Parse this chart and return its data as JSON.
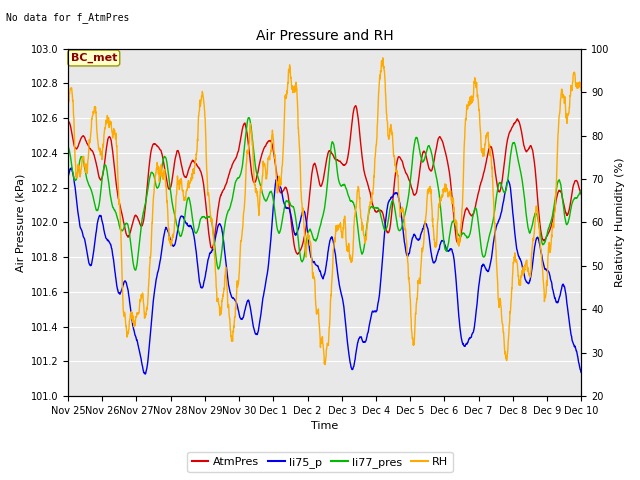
{
  "title": "Air Pressure and RH",
  "top_left_note": "No data for f_AtmPres",
  "annotation_label": "BC_met",
  "ylabel_left": "Air Pressure (kPa)",
  "ylabel_right": "Relativity Humidity (%)",
  "xlabel": "Time",
  "ylim_left": [
    101.0,
    103.0
  ],
  "ylim_right": [
    20,
    100
  ],
  "yticks_left": [
    101.0,
    101.2,
    101.4,
    101.6,
    101.8,
    102.0,
    102.2,
    102.4,
    102.6,
    102.8,
    103.0
  ],
  "yticks_right": [
    20,
    30,
    40,
    50,
    60,
    70,
    80,
    90,
    100
  ],
  "bg_color": "#e8e8e8",
  "fig_bg_color": "#ffffff",
  "line_colors": {
    "AtmPres": "#dd0000",
    "li75_p": "#0000ee",
    "li77_pres": "#00bb00",
    "RH": "#ffaa00"
  },
  "legend_labels": [
    "AtmPres",
    "li75_p",
    "li77_pres",
    "RH"
  ],
  "x_tick_labels": [
    "Nov 25",
    "Nov 26",
    "Nov 27",
    "Nov 28",
    "Nov 29",
    "Nov 30",
    "Dec 1",
    "Dec 2",
    "Dec 3",
    "Dec 4",
    "Dec 5",
    "Dec 6",
    "Dec 7",
    "Dec 8",
    "Dec 9",
    "Dec 10"
  ],
  "n_days": 15,
  "seed": 42,
  "title_fontsize": 10,
  "axis_label_fontsize": 8,
  "tick_fontsize": 7,
  "legend_fontsize": 8,
  "note_fontsize": 7,
  "annotation_fontsize": 8,
  "linewidth": 1.0
}
